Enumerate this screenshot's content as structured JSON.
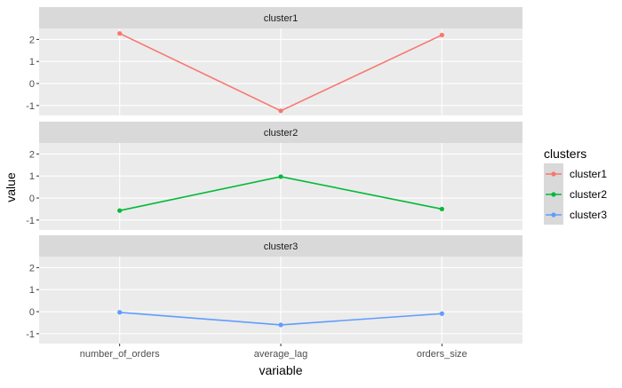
{
  "chart_data": {
    "type": "line",
    "facet_by": "clusters",
    "panels": [
      {
        "strip": "cluster1",
        "series": "cluster1"
      },
      {
        "strip": "cluster2",
        "series": "cluster2"
      },
      {
        "strip": "cluster3",
        "series": "cluster3"
      }
    ],
    "categories": [
      "number_of_orders",
      "average_lag",
      "orders_size"
    ],
    "series": [
      {
        "name": "cluster1",
        "color": "#F8766D",
        "values": [
          2.27,
          -1.24,
          2.2
        ]
      },
      {
        "name": "cluster2",
        "color": "#00BA38",
        "values": [
          -0.57,
          0.97,
          -0.5
        ]
      },
      {
        "name": "cluster3",
        "color": "#619CFF",
        "values": [
          -0.03,
          -0.6,
          -0.09
        ]
      }
    ],
    "xlabel": "variable",
    "ylabel": "value",
    "ylim": [
      -1.45,
      2.5
    ],
    "yticks": [
      -1,
      0,
      1,
      2
    ],
    "legend": {
      "title": "clusters",
      "position": "right"
    },
    "grid": true
  }
}
